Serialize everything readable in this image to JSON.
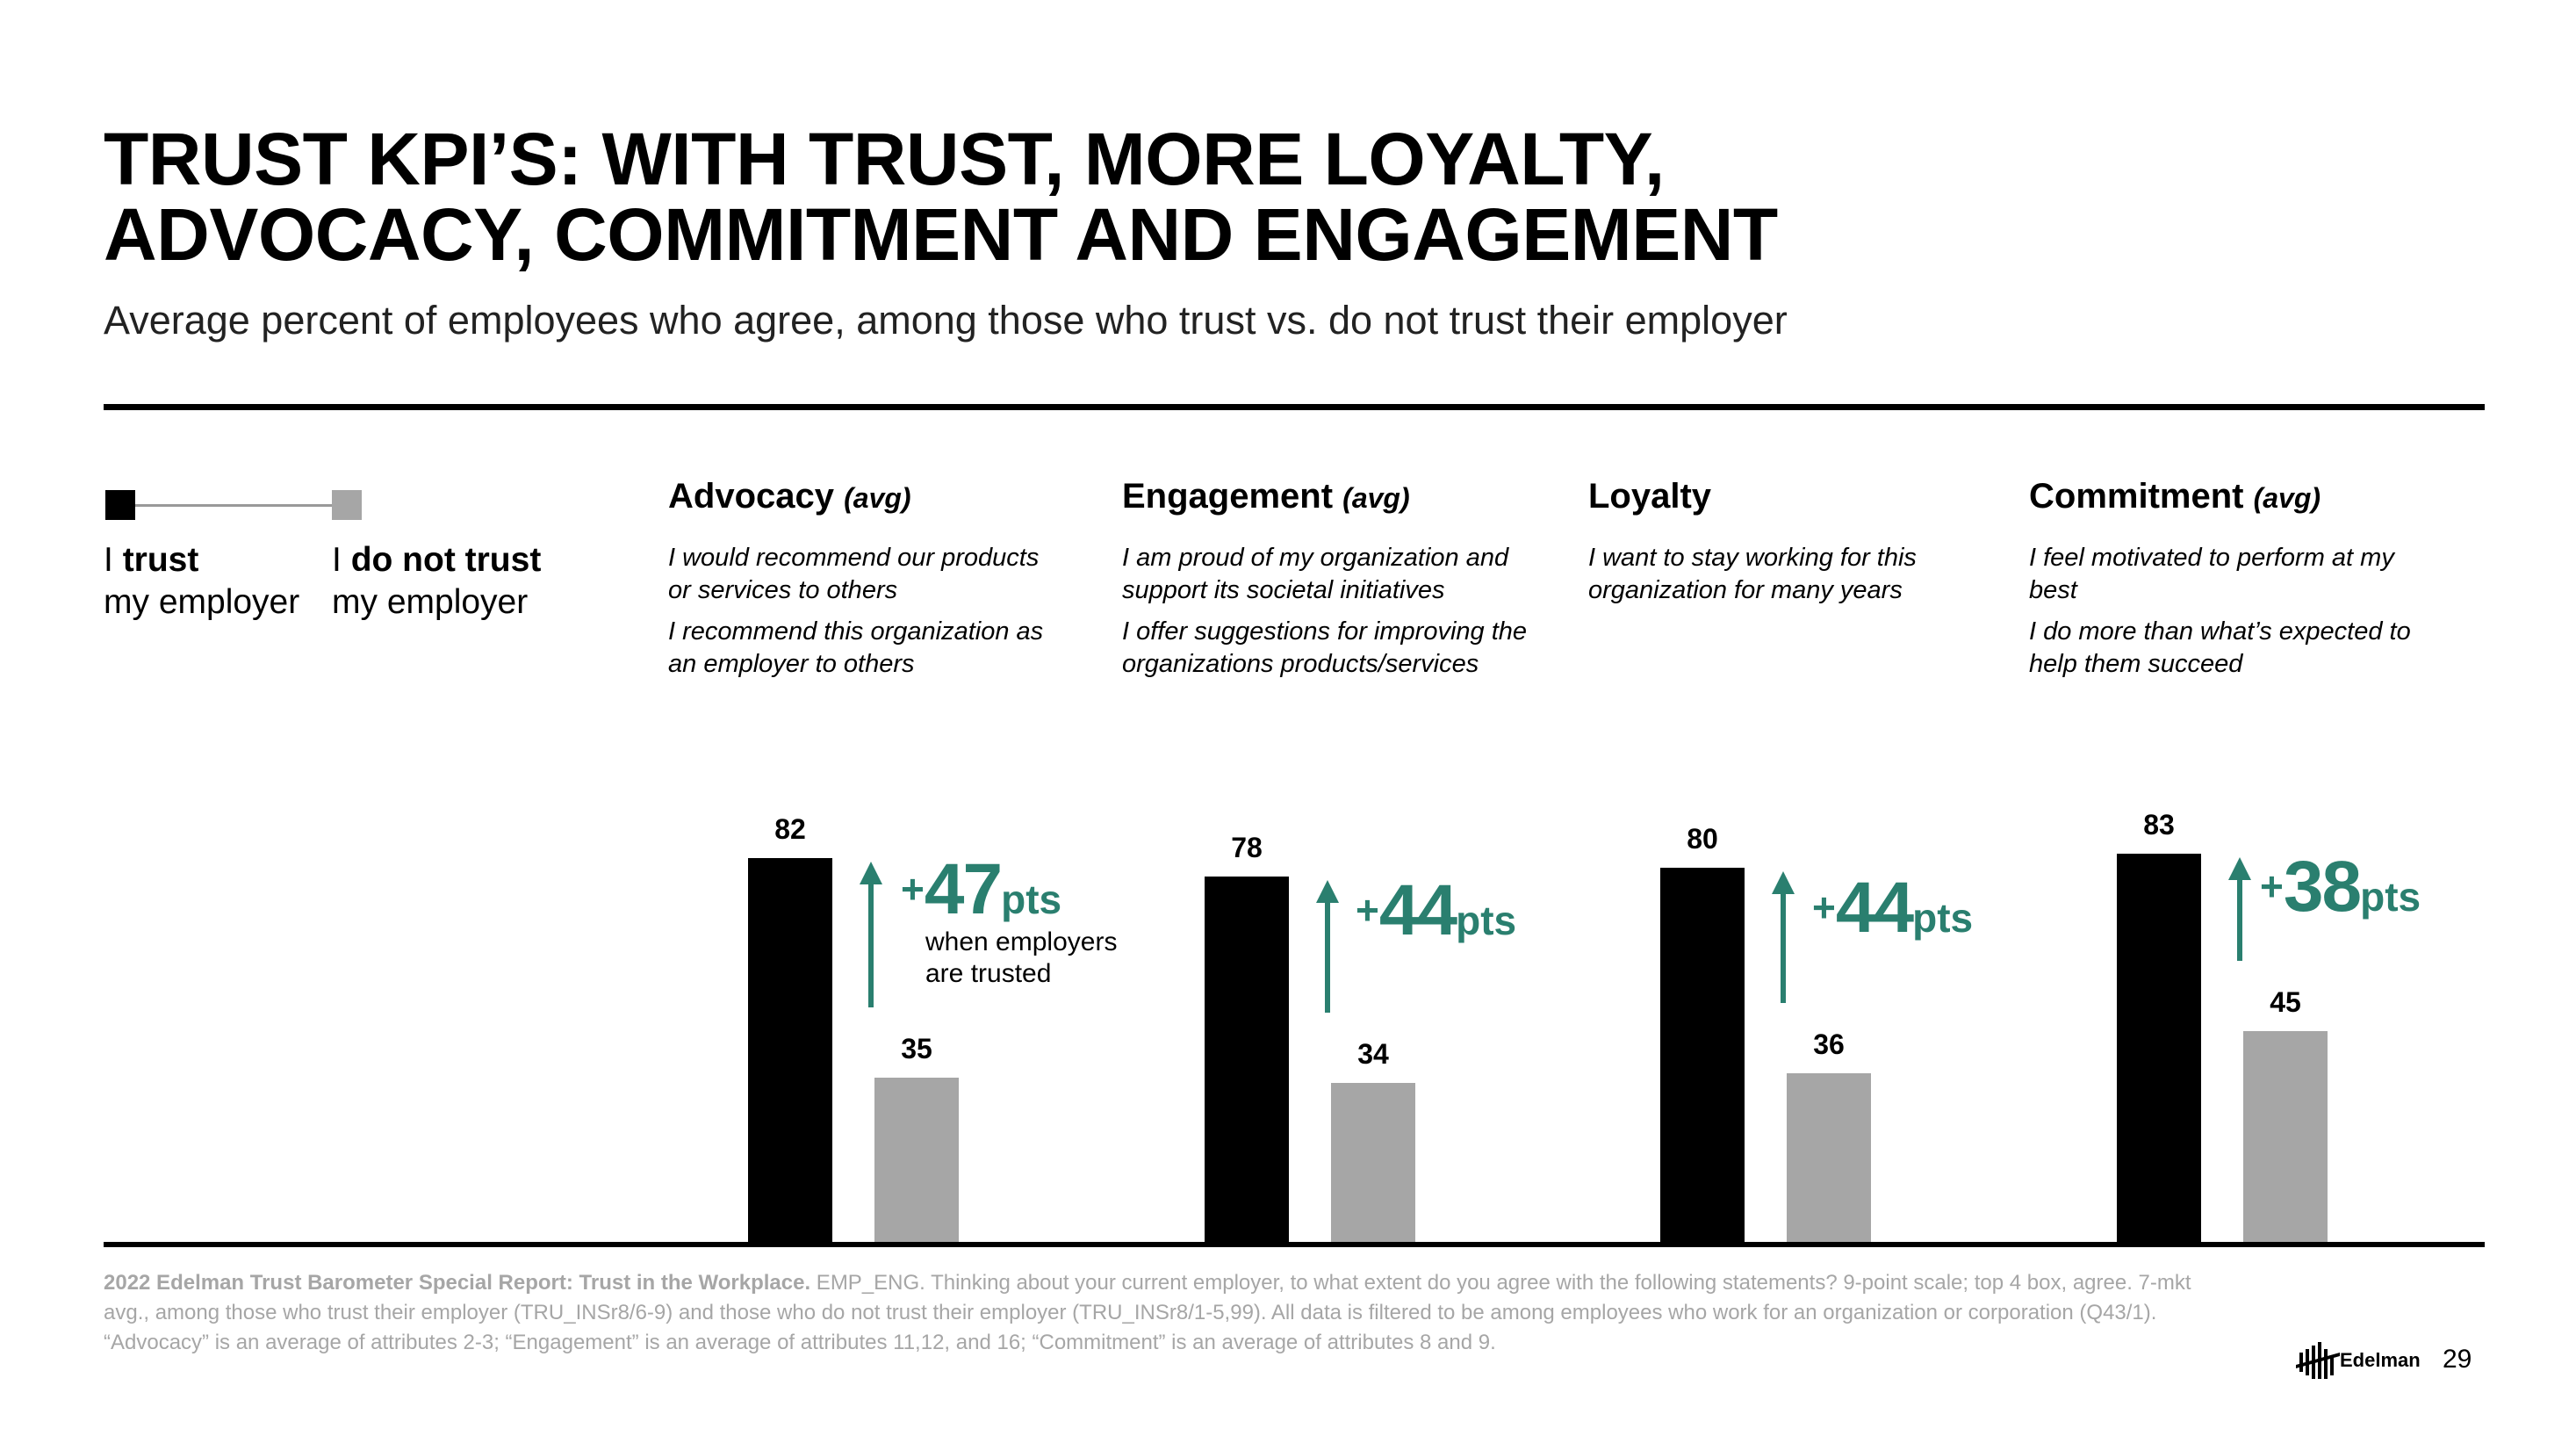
{
  "title_line1": "TRUST KPI’S: WITH TRUST, MORE LOYALTY,",
  "title_line2": "ADVOCACY, COMMITMENT AND ENGAGEMENT",
  "subtitle": "Average percent of employees who agree, among those who trust vs. do not trust their employer",
  "legend": {
    "trust_prefix": "I",
    "trust_bold": "trust",
    "trust_line2": "my employer",
    "notrust_prefix": "I",
    "notrust_bold": "do not trust",
    "notrust_line2": "my employer"
  },
  "categories": [
    {
      "title": "Advocacy",
      "qualifier": "(avg)",
      "desc1": "I would recommend our products or services to others",
      "desc2": "I recommend this organization as an employer to others"
    },
    {
      "title": "Engagement",
      "qualifier": "(avg)",
      "desc1": "I am proud of my organization and support its societal initiatives",
      "desc2": "I offer suggestions for improving the organizations products/services"
    },
    {
      "title": "Loyalty",
      "qualifier": "",
      "desc1": "I want to stay working for this organization for many years",
      "desc2": ""
    },
    {
      "title": "Commitment",
      "qualifier": "(avg)",
      "desc1": "I feel motivated to perform at my best",
      "desc2": "I do more than what’s expected to help them succeed"
    }
  ],
  "deltas": [
    {
      "plus": "+",
      "num": "47",
      "pts": "pts"
    },
    {
      "plus": "+",
      "num": "44",
      "pts": "pts"
    },
    {
      "plus": "+",
      "num": "44",
      "pts": "pts"
    },
    {
      "plus": "+",
      "num": "38",
      "pts": "pts"
    }
  ],
  "delta_note_line1": "when employers",
  "delta_note_line2": "are trusted",
  "chart_data": {
    "type": "bar",
    "categories": [
      "Advocacy (avg)",
      "Engagement (avg)",
      "Loyalty",
      "Commitment (avg)"
    ],
    "series": [
      {
        "name": "I trust my employer",
        "values": [
          82,
          78,
          80,
          83
        ],
        "color": "#000000"
      },
      {
        "name": "I do not trust my employer",
        "values": [
          35,
          34,
          36,
          45
        ],
        "color": "#a6a6a6"
      }
    ],
    "ylim": [
      0,
      100
    ],
    "accent_color": "#2a7f6f"
  },
  "footnote": {
    "bold": "2022 Edelman Trust Barometer Special Report: Trust in the Workplace.",
    "text": " EMP_ENG. Thinking about your current employer, to what extent do you agree with the following statements? 9-point scale; top 4 box, agree. 7-mkt avg., among those who trust their employer (TRU_INSr8/6-9) and those who do not trust their employer (TRU_INSr8/1-5,99). All data is filtered to be among employees who work for an organization or corporation (Q43/1). “Advocacy” is an average of attributes 2-3; “Engagement” is an average of attributes 11,12, and 16; “Commitment” is an average of attributes 8 and 9."
  },
  "brand_name": "Edelman",
  "page_number": "29"
}
